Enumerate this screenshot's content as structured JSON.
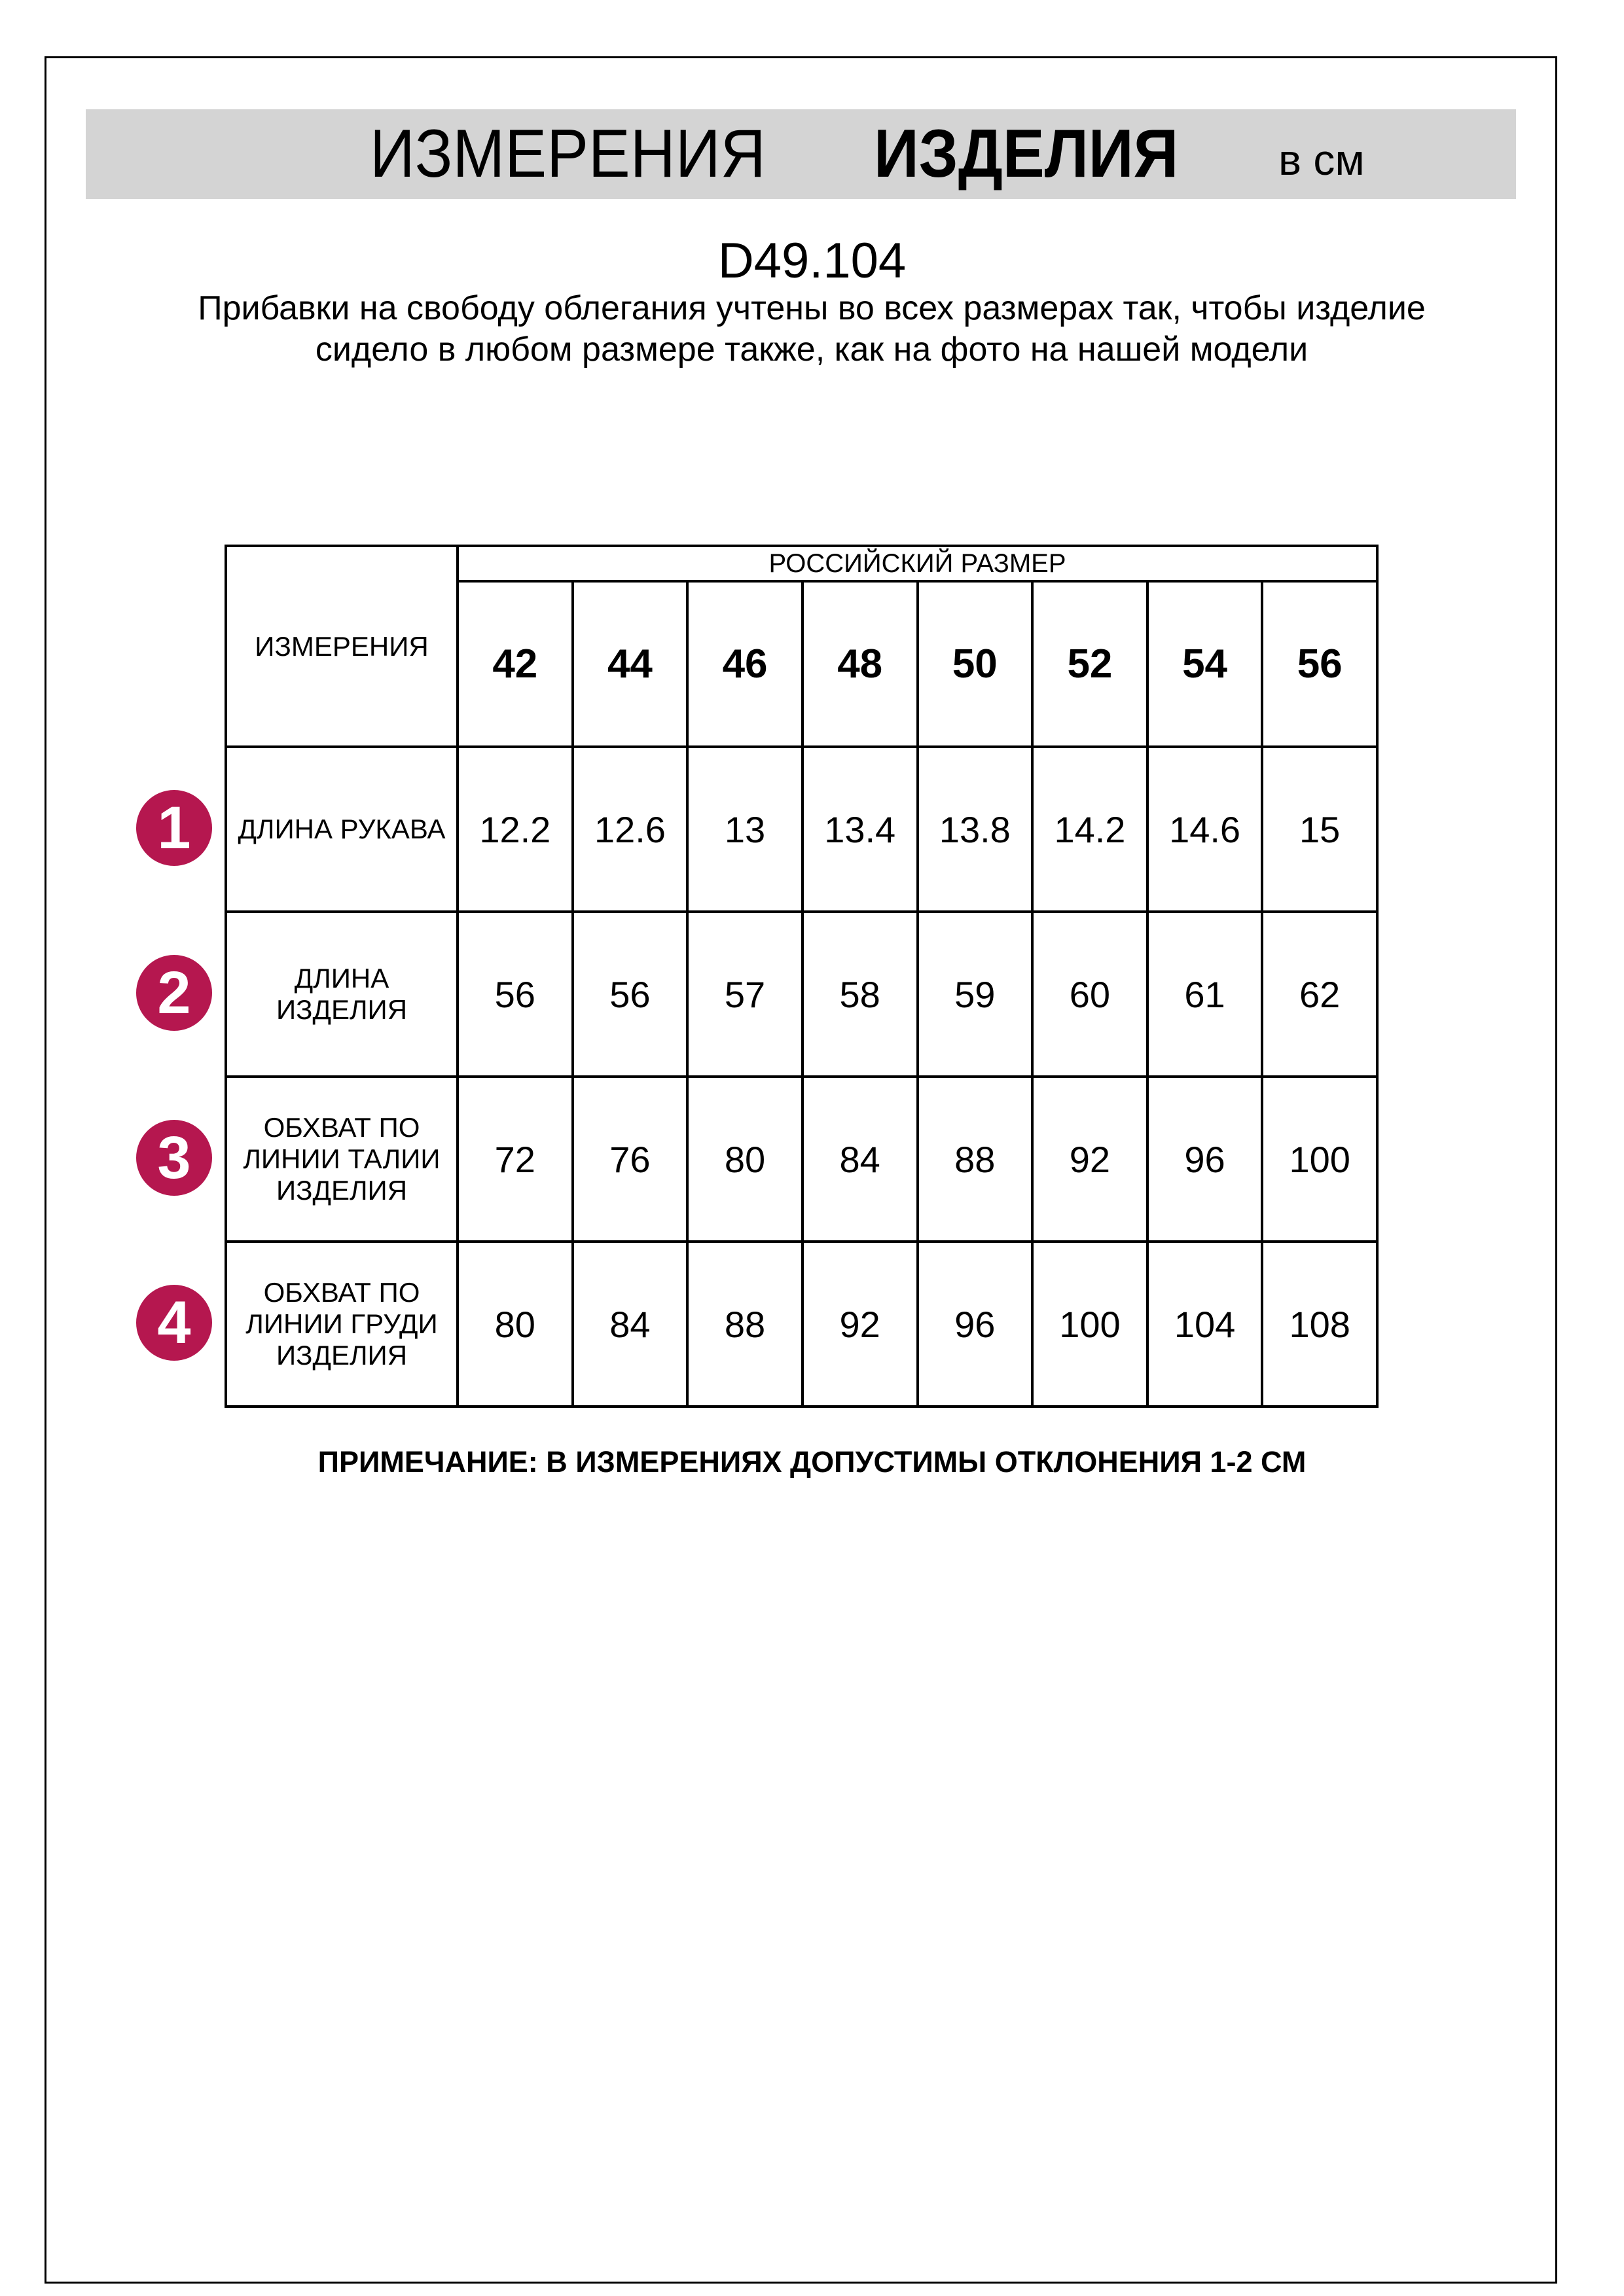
{
  "header": {
    "title_part1": "ИЗМЕРЕНИЯ",
    "title_part2": "ИЗДЕЛИЯ",
    "unit": "в см"
  },
  "product_code": "D49.104",
  "description": "Прибавки на свободу облегания учтены во всех размерах так, чтобы изделие сидело в любом размере также, как на фото на нашей модели",
  "table": {
    "corner_label": "ИЗМЕРЕНИЯ",
    "size_group_label": "РОССИЙСКИЙ РАЗМЕР",
    "sizes": [
      "42",
      "44",
      "46",
      "48",
      "50",
      "52",
      "54",
      "56"
    ],
    "rows": [
      {
        "marker": "1",
        "label": "ДЛИНА РУКАВА",
        "values": [
          "12.2",
          "12.6",
          "13",
          "13.4",
          "13.8",
          "14.2",
          "14.6",
          "15"
        ]
      },
      {
        "marker": "2",
        "label": "ДЛИНА ИЗДЕЛИЯ",
        "values": [
          "56",
          "56",
          "57",
          "58",
          "59",
          "60",
          "61",
          "62"
        ]
      },
      {
        "marker": "3",
        "label": "ОБХВАТ ПО ЛИНИИ ТАЛИИ ИЗДЕЛИЯ",
        "values": [
          "72",
          "76",
          "80",
          "84",
          "88",
          "92",
          "96",
          "100"
        ]
      },
      {
        "marker": "4",
        "label": "ОБХВАТ ПО ЛИНИИ ГРУДИ ИЗДЕЛИЯ",
        "values": [
          "80",
          "84",
          "88",
          "92",
          "96",
          "100",
          "104",
          "108"
        ]
      }
    ]
  },
  "note": "ПРИМЕЧАНИЕ: В ИЗМЕРЕНИЯХ ДОПУСТИМЫ ОТКЛОНЕНИЯ 1-2 СМ",
  "colors": {
    "banner": "#d4d4d4",
    "marker": "#b5174f"
  }
}
